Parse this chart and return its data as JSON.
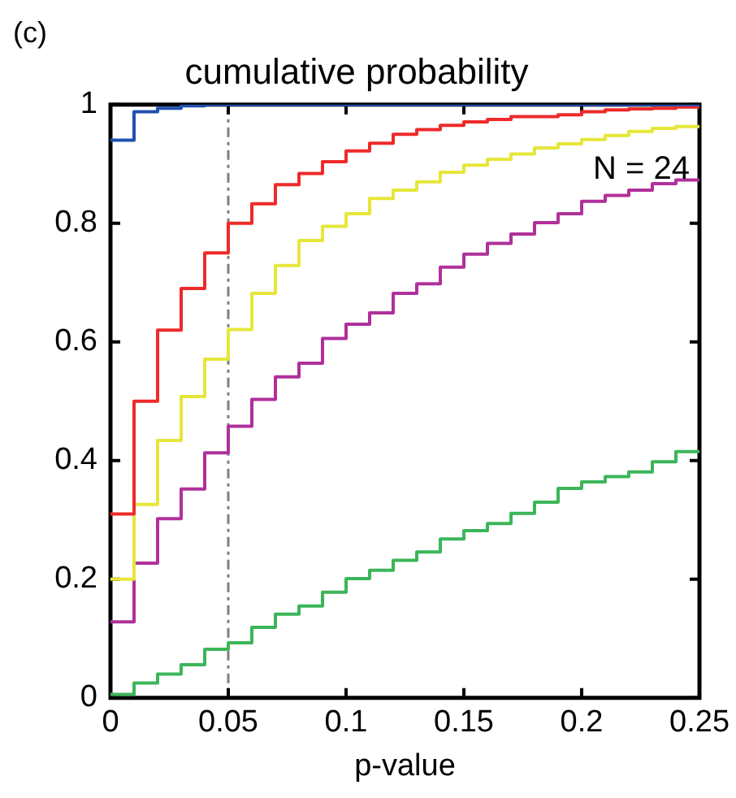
{
  "chart_data": {
    "type": "step",
    "title": "cumulative probability",
    "xlabel": "p-value",
    "annotations": [
      "(c)",
      "N = 24"
    ],
    "x": [
      0,
      0.01,
      0.02,
      0.03,
      0.04,
      0.05,
      0.06,
      0.07,
      0.08,
      0.09,
      0.1,
      0.11,
      0.12,
      0.13,
      0.14,
      0.15,
      0.16,
      0.17,
      0.18,
      0.19,
      0.2,
      0.21,
      0.22,
      0.23,
      0.24,
      0.25
    ],
    "series": [
      {
        "color": "#2050b0",
        "values": [
          0.94,
          0.988,
          0.994,
          0.998,
          1,
          1,
          1,
          1,
          1,
          1,
          1,
          1,
          1,
          1,
          1,
          1,
          1,
          1,
          1,
          1,
          1,
          1,
          1,
          1,
          1,
          1
        ]
      },
      {
        "color": "#ee2a2a",
        "values": [
          0.31,
          0.5,
          0.62,
          0.69,
          0.75,
          0.8,
          0.833,
          0.865,
          0.884,
          0.904,
          0.922,
          0.935,
          0.95,
          0.958,
          0.965,
          0.971,
          0.975,
          0.98,
          0.98,
          0.983,
          0.988,
          0.991,
          0.993,
          0.994,
          0.996,
          0.996
        ]
      },
      {
        "color": "#e6e63a",
        "values": [
          0.2,
          0.326,
          0.434,
          0.508,
          0.571,
          0.621,
          0.682,
          0.729,
          0.771,
          0.795,
          0.816,
          0.842,
          0.856,
          0.87,
          0.886,
          0.898,
          0.908,
          0.917,
          0.927,
          0.934,
          0.941,
          0.948,
          0.955,
          0.96,
          0.963,
          0.963
        ]
      },
      {
        "color": "#b0309a",
        "values": [
          0.128,
          0.227,
          0.302,
          0.352,
          0.413,
          0.458,
          0.503,
          0.541,
          0.564,
          0.606,
          0.63,
          0.649,
          0.682,
          0.698,
          0.726,
          0.748,
          0.766,
          0.782,
          0.801,
          0.816,
          0.837,
          0.847,
          0.856,
          0.867,
          0.873,
          0.873
        ]
      },
      {
        "color": "#3cb55a",
        "values": [
          0.006,
          0.025,
          0.04,
          0.056,
          0.082,
          0.093,
          0.119,
          0.141,
          0.155,
          0.178,
          0.201,
          0.215,
          0.232,
          0.246,
          0.268,
          0.282,
          0.294,
          0.311,
          0.33,
          0.353,
          0.364,
          0.373,
          0.381,
          0.398,
          0.415,
          0.415
        ]
      }
    ],
    "xlim": [
      0,
      0.25
    ],
    "xticks": [
      0,
      0.05,
      0.1,
      0.15,
      0.2,
      0.25
    ],
    "ylim": [
      0,
      1
    ],
    "yticks": [
      0,
      0.2,
      0.4,
      0.6,
      0.8,
      1
    ],
    "ref_lines": [
      {
        "axis": "x",
        "value": 0.05,
        "color": "#808080",
        "line_style": "dashed"
      }
    ],
    "marker": "none",
    "line_style": "solid",
    "legend": false,
    "grid": false
  }
}
